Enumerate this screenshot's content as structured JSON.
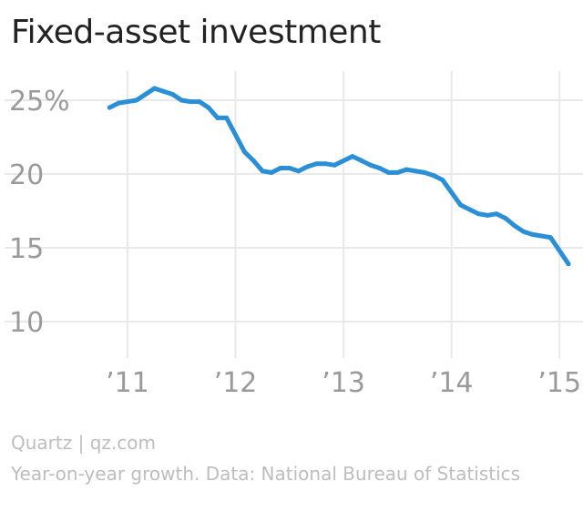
{
  "title": "Fixed-asset investment",
  "footer": {
    "source": "Quartz | qz.com",
    "note": "Year-on-year growth. Data: National Bureau of Statistics"
  },
  "colors": {
    "line": "#2a8fd6",
    "grid": "#e9e9e9",
    "tick_text": "#9a9a9a",
    "footer_text": "#bdbdbd"
  },
  "chart_data": {
    "type": "line",
    "title": "Fixed-asset investment",
    "xlabel": "",
    "ylabel": "",
    "ylim": [
      9,
      27
    ],
    "xlim": [
      "2010-10-01",
      "2015-03-01"
    ],
    "y_ticks": [
      {
        "value": 25,
        "label": "25%"
      },
      {
        "value": 20,
        "label": "20"
      },
      {
        "value": 15,
        "label": "15"
      },
      {
        "value": 10,
        "label": "10"
      }
    ],
    "x_ticks": [
      {
        "value": "2011-01",
        "label": "’11"
      },
      {
        "value": "2012-01",
        "label": "’12"
      },
      {
        "value": "2013-01",
        "label": "’13"
      },
      {
        "value": "2014-01",
        "label": "’14"
      },
      {
        "value": "2015-01",
        "label": "’15"
      }
    ],
    "grid": true,
    "series": [
      {
        "x": [
          "2010-11",
          "2010-12",
          "2011-02",
          "2011-03",
          "2011-04",
          "2011-05",
          "2011-06",
          "2011-07",
          "2011-08",
          "2011-09",
          "2011-10",
          "2011-11",
          "2011-12",
          "2012-02",
          "2012-03",
          "2012-04",
          "2012-05",
          "2012-06",
          "2012-07",
          "2012-08",
          "2012-09",
          "2012-10",
          "2012-11",
          "2012-12",
          "2013-02",
          "2013-03",
          "2013-04",
          "2013-05",
          "2013-06",
          "2013-07",
          "2013-08",
          "2013-09",
          "2013-10",
          "2013-11",
          "2013-12",
          "2014-02",
          "2014-03",
          "2014-04",
          "2014-05",
          "2014-06",
          "2014-07",
          "2014-08",
          "2014-09",
          "2014-10",
          "2014-11",
          "2014-12",
          "2015-02"
        ],
        "values": [
          24.5,
          24.8,
          25.0,
          25.4,
          25.8,
          25.6,
          25.4,
          25.0,
          24.9,
          24.9,
          24.5,
          23.8,
          23.8,
          21.5,
          20.9,
          20.2,
          20.1,
          20.4,
          20.4,
          20.2,
          20.5,
          20.7,
          20.7,
          20.6,
          21.2,
          20.9,
          20.6,
          20.4,
          20.1,
          20.1,
          20.3,
          20.2,
          20.1,
          19.9,
          19.6,
          17.9,
          17.6,
          17.3,
          17.2,
          17.3,
          17.0,
          16.5,
          16.1,
          15.9,
          15.8,
          15.7,
          13.9
        ]
      }
    ]
  }
}
